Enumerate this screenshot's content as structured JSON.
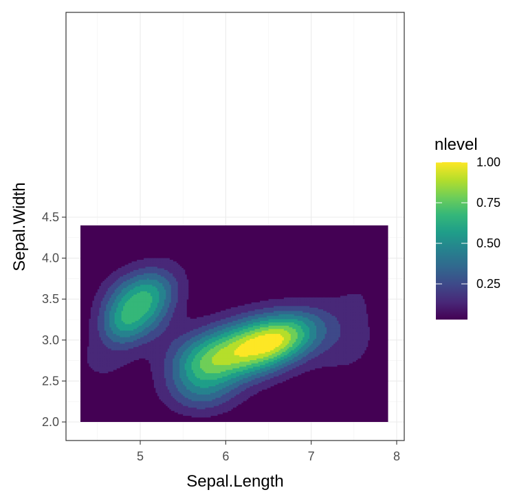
{
  "chart_data": {
    "type": "heatmap",
    "subtype": "2d-density-filled-contour",
    "title": "",
    "xlabel": "Sepal.Length",
    "ylabel": "Sepal.Width",
    "xlim": [
      4.3,
      7.9
    ],
    "ylim": [
      2.0,
      4.4
    ],
    "x_ticks": [
      5,
      6,
      7,
      8
    ],
    "x_tick_labels": [
      "5",
      "6",
      "7",
      "8"
    ],
    "y_ticks": [
      2.0,
      2.5,
      3.0,
      3.5,
      4.0,
      4.5
    ],
    "y_tick_labels": [
      "2.0",
      "2.5",
      "3.0",
      "3.5",
      "4.0",
      "4.5"
    ],
    "grid": true,
    "theme": "bw",
    "density_peaks": [
      {
        "x": 6.15,
        "y": 2.85,
        "nlevel": 1.0
      },
      {
        "x": 6.55,
        "y": 3.0,
        "nlevel": 0.95
      },
      {
        "x": 5.05,
        "y": 3.42,
        "nlevel": 0.7
      }
    ],
    "legend": {
      "title": "nlevel",
      "placement": "right",
      "breaks": [
        0.25,
        0.5,
        0.75,
        1.0
      ],
      "labels": [
        "0.25",
        "0.50",
        "0.75",
        "1.00"
      ],
      "range": [
        0.03,
        1.0
      ],
      "palette": "viridis",
      "colors": [
        "#440154",
        "#482878",
        "#3e4989",
        "#31688e",
        "#26828e",
        "#1f9e89",
        "#35b779",
        "#6ece58",
        "#b5de2b",
        "#fde725"
      ]
    }
  }
}
